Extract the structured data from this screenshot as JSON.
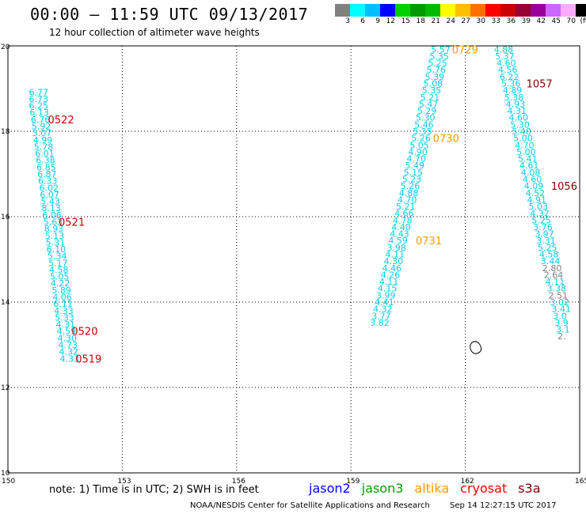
{
  "title": "00:00 – 11:59 UTC 09/13/2017",
  "subtitle": "12 hour collection of altimeter wave heights",
  "legend": {
    "colors": [
      "#808080",
      "#00ffff",
      "#00bfff",
      "#0000ff",
      "#00d000",
      "#009900",
      "#00bb00",
      "#ffff00",
      "#ffbf00",
      "#ff7000",
      "#ff0000",
      "#cc0000",
      "#990033",
      "#990099",
      "#cc66ff",
      "#ffaaff",
      "#000000"
    ],
    "ticks": [
      "3",
      "6",
      "9",
      "12",
      "15",
      "18",
      "21",
      "24",
      "27",
      "30",
      "33",
      "36",
      "39",
      "42",
      "45",
      "70",
      "(ft)"
    ]
  },
  "map": {
    "x_ticks": [
      "150",
      "153",
      "156",
      "159",
      "162",
      "165"
    ],
    "y_ticks": [
      "20",
      "18",
      "16",
      "14",
      "12",
      "10"
    ],
    "lon_range": [
      150,
      165
    ],
    "lat_range": [
      10,
      20
    ],
    "value_color": "#00cfe6",
    "low_value_color": "#808080",
    "tracks": [
      {
        "points": [
          {
            "lon": 150.55,
            "lat": 18.92,
            "v": "6.77"
          },
          {
            "lon": 150.55,
            "lat": 18.76,
            "v": "6.73"
          },
          {
            "lon": 150.55,
            "lat": 18.6,
            "v": "6.25"
          },
          {
            "lon": 150.57,
            "lat": 18.44,
            "v": "6.13"
          },
          {
            "lon": 150.6,
            "lat": 18.28,
            "v": "6.76"
          },
          {
            "lon": 150.62,
            "lat": 18.12,
            "v": "5.92"
          },
          {
            "lon": 150.64,
            "lat": 17.96,
            "v": "5.07"
          },
          {
            "lon": 150.66,
            "lat": 17.8,
            "v": "4.99"
          },
          {
            "lon": 150.68,
            "lat": 17.64,
            "v": "5.78"
          },
          {
            "lon": 150.71,
            "lat": 17.48,
            "v": "6.01"
          },
          {
            "lon": 150.73,
            "lat": 17.32,
            "v": "6.38"
          },
          {
            "lon": 150.75,
            "lat": 17.16,
            "v": "6.85"
          },
          {
            "lon": 150.77,
            "lat": 17.0,
            "v": "6.87"
          },
          {
            "lon": 150.79,
            "lat": 16.84,
            "v": "6.33"
          },
          {
            "lon": 150.82,
            "lat": 16.68,
            "v": "6.02"
          },
          {
            "lon": 150.84,
            "lat": 16.52,
            "v": "6.07"
          },
          {
            "lon": 150.86,
            "lat": 16.36,
            "v": "5.43"
          },
          {
            "lon": 150.88,
            "lat": 16.2,
            "v": "8.13"
          },
          {
            "lon": 150.9,
            "lat": 16.04,
            "v": "6.06"
          },
          {
            "lon": 150.93,
            "lat": 15.88,
            "v": "5.63"
          },
          {
            "lon": 150.95,
            "lat": 15.72,
            "v": "8.93"
          },
          {
            "lon": 150.97,
            "lat": 15.56,
            "v": "5.13"
          },
          {
            "lon": 150.99,
            "lat": 15.4,
            "v": "5.31"
          },
          {
            "lon": 151.01,
            "lat": 15.24,
            "v": "6.10"
          },
          {
            "lon": 151.04,
            "lat": 15.08,
            "v": "5.34"
          },
          {
            "lon": 151.06,
            "lat": 14.92,
            "v": "5.17"
          },
          {
            "lon": 151.08,
            "lat": 14.76,
            "v": "4.58"
          },
          {
            "lon": 151.1,
            "lat": 14.6,
            "v": "5.05"
          },
          {
            "lon": 151.12,
            "lat": 14.44,
            "v": "4.22"
          },
          {
            "lon": 151.15,
            "lat": 14.28,
            "v": "5.89"
          },
          {
            "lon": 151.17,
            "lat": 14.12,
            "v": "4.06"
          },
          {
            "lon": 151.19,
            "lat": 13.96,
            "v": "6.11"
          },
          {
            "lon": 151.21,
            "lat": 13.8,
            "v": "4.33"
          },
          {
            "lon": 151.23,
            "lat": 13.64,
            "v": "5.33"
          },
          {
            "lon": 151.26,
            "lat": 13.48,
            "v": "4.31"
          },
          {
            "lon": 151.28,
            "lat": 13.32,
            "v": "4.59"
          },
          {
            "lon": 151.3,
            "lat": 13.16,
            "v": "4.30"
          },
          {
            "lon": 151.32,
            "lat": 13.0,
            "v": "4.73"
          },
          {
            "lon": 151.34,
            "lat": 12.84,
            "v": "4.32"
          },
          {
            "lon": 151.36,
            "lat": 12.68,
            "v": "4.33"
          }
        ],
        "labels": [
          {
            "lon": 151.05,
            "lat": 18.28,
            "t": "0522",
            "color": "#cc0000"
          },
          {
            "lon": 151.33,
            "lat": 15.88,
            "t": "0521",
            "color": "#cc0000"
          },
          {
            "lon": 151.67,
            "lat": 13.32,
            "t": "0520",
            "color": "#cc0000"
          },
          {
            "lon": 151.77,
            "lat": 12.68,
            "t": "0519",
            "color": "#cc0000"
          }
        ]
      },
      {
        "points": [
          {
            "lon": 161.1,
            "lat": 19.92,
            "v": "5.57"
          },
          {
            "lon": 161.06,
            "lat": 19.76,
            "v": "5.35"
          },
          {
            "lon": 161.02,
            "lat": 19.6,
            "v": "5.25"
          },
          {
            "lon": 160.98,
            "lat": 19.44,
            "v": "5.76"
          },
          {
            "lon": 160.94,
            "lat": 19.28,
            "v": "5.39"
          },
          {
            "lon": 160.9,
            "lat": 19.12,
            "v": "5.08"
          },
          {
            "lon": 160.86,
            "lat": 18.96,
            "v": "5.35"
          },
          {
            "lon": 160.82,
            "lat": 18.8,
            "v": "5.21"
          },
          {
            "lon": 160.78,
            "lat": 18.64,
            "v": "5.47"
          },
          {
            "lon": 160.74,
            "lat": 18.48,
            "v": "5.29"
          },
          {
            "lon": 160.7,
            "lat": 18.32,
            "v": "5.30"
          },
          {
            "lon": 160.66,
            "lat": 18.16,
            "v": "5.46"
          },
          {
            "lon": 160.62,
            "lat": 18.0,
            "v": "5.35"
          },
          {
            "lon": 160.58,
            "lat": 17.84,
            "v": "5.26"
          },
          {
            "lon": 160.54,
            "lat": 17.68,
            "v": "5.05"
          },
          {
            "lon": 160.5,
            "lat": 17.52,
            "v": "4.90"
          },
          {
            "lon": 160.46,
            "lat": 17.36,
            "v": "4.70"
          },
          {
            "lon": 160.42,
            "lat": 17.2,
            "v": "5.49"
          },
          {
            "lon": 160.38,
            "lat": 17.04,
            "v": "5.15"
          },
          {
            "lon": 160.34,
            "lat": 16.88,
            "v": "5.23"
          },
          {
            "lon": 160.3,
            "lat": 16.72,
            "v": "5.26"
          },
          {
            "lon": 160.26,
            "lat": 16.56,
            "v": "4.88"
          },
          {
            "lon": 160.22,
            "lat": 16.4,
            "v": "4.70"
          },
          {
            "lon": 160.18,
            "lat": 16.24,
            "v": "5.21"
          },
          {
            "lon": 160.14,
            "lat": 16.08,
            "v": "4.66"
          },
          {
            "lon": 160.1,
            "lat": 15.92,
            "v": "4.78"
          },
          {
            "lon": 160.06,
            "lat": 15.76,
            "v": "4.40"
          },
          {
            "lon": 160.02,
            "lat": 15.6,
            "v": "4.43"
          },
          {
            "lon": 159.98,
            "lat": 15.44,
            "v": "4.59"
          },
          {
            "lon": 159.94,
            "lat": 15.28,
            "v": "3.98"
          },
          {
            "lon": 159.9,
            "lat": 15.12,
            "v": "4.11"
          },
          {
            "lon": 159.86,
            "lat": 14.96,
            "v": "4.30"
          },
          {
            "lon": 159.82,
            "lat": 14.8,
            "v": "4.46"
          },
          {
            "lon": 159.78,
            "lat": 14.64,
            "v": "4.26"
          },
          {
            "lon": 159.74,
            "lat": 14.48,
            "v": "4.11"
          },
          {
            "lon": 159.7,
            "lat": 14.32,
            "v": "4.15"
          },
          {
            "lon": 159.66,
            "lat": 14.16,
            "v": "3.99"
          },
          {
            "lon": 159.62,
            "lat": 14.0,
            "v": "4.41"
          },
          {
            "lon": 159.58,
            "lat": 13.84,
            "v": "4.32"
          },
          {
            "lon": 159.54,
            "lat": 13.68,
            "v": "3.77"
          },
          {
            "lon": 159.5,
            "lat": 13.52,
            "v": "3.82"
          }
        ],
        "labels": [
          {
            "lon": 161.65,
            "lat": 19.92,
            "t": "0729",
            "color": "#ff9900"
          },
          {
            "lon": 161.15,
            "lat": 17.84,
            "t": "0730",
            "color": "#ff9900"
          },
          {
            "lon": 160.7,
            "lat": 15.44,
            "t": "0731",
            "color": "#ff9900"
          }
        ]
      },
      {
        "points": [
          {
            "lon": 162.75,
            "lat": 19.92,
            "v": "4.88"
          },
          {
            "lon": 162.78,
            "lat": 19.76,
            "v": "5.37"
          },
          {
            "lon": 162.82,
            "lat": 19.6,
            "v": "4.60"
          },
          {
            "lon": 162.86,
            "lat": 19.44,
            "v": "4.56"
          },
          {
            "lon": 162.9,
            "lat": 19.28,
            "v": "6.22"
          },
          {
            "lon": 162.94,
            "lat": 19.12,
            "v": "5.36"
          },
          {
            "lon": 162.98,
            "lat": 18.96,
            "v": "4.89"
          },
          {
            "lon": 163.02,
            "lat": 18.8,
            "v": "5.38"
          },
          {
            "lon": 163.06,
            "lat": 18.64,
            "v": "4.93"
          },
          {
            "lon": 163.1,
            "lat": 18.48,
            "v": "4.31"
          },
          {
            "lon": 163.14,
            "lat": 18.32,
            "v": "4.60"
          },
          {
            "lon": 163.18,
            "lat": 18.16,
            "v": "5.30"
          },
          {
            "lon": 163.22,
            "lat": 18.0,
            "v": "5.40"
          },
          {
            "lon": 163.26,
            "lat": 17.84,
            "v": "5.00"
          },
          {
            "lon": 163.3,
            "lat": 17.68,
            "v": "4.70"
          },
          {
            "lon": 163.34,
            "lat": 17.52,
            "v": "5.00"
          },
          {
            "lon": 163.38,
            "lat": 17.36,
            "v": "5.41"
          },
          {
            "lon": 163.42,
            "lat": 17.2,
            "v": "4.61"
          },
          {
            "lon": 163.46,
            "lat": 17.04,
            "v": "4.08"
          },
          {
            "lon": 163.5,
            "lat": 16.88,
            "v": "4.60"
          },
          {
            "lon": 163.54,
            "lat": 16.72,
            "v": "4.09"
          },
          {
            "lon": 163.58,
            "lat": 16.56,
            "v": "4.52"
          },
          {
            "lon": 163.62,
            "lat": 16.4,
            "v": "4.91"
          },
          {
            "lon": 163.66,
            "lat": 16.24,
            "v": "5.03"
          },
          {
            "lon": 163.7,
            "lat": 16.08,
            "v": "4.32"
          },
          {
            "lon": 163.74,
            "lat": 15.92,
            "v": "5.25"
          },
          {
            "lon": 163.78,
            "lat": 15.76,
            "v": "3.76"
          },
          {
            "lon": 163.82,
            "lat": 15.6,
            "v": "3.97"
          },
          {
            "lon": 163.86,
            "lat": 15.44,
            "v": "3.31"
          },
          {
            "lon": 163.9,
            "lat": 15.28,
            "v": "5.25"
          },
          {
            "lon": 163.94,
            "lat": 15.12,
            "v": "4.58"
          },
          {
            "lon": 163.98,
            "lat": 14.96,
            "v": "3.44"
          },
          {
            "lon": 164.02,
            "lat": 14.8,
            "v": "2.80"
          },
          {
            "lon": 164.06,
            "lat": 14.64,
            "v": "2.64"
          },
          {
            "lon": 164.1,
            "lat": 14.48,
            "v": "4.11"
          },
          {
            "lon": 164.14,
            "lat": 14.32,
            "v": "3.38"
          },
          {
            "lon": 164.18,
            "lat": 14.16,
            "v": "2.51"
          },
          {
            "lon": 164.22,
            "lat": 14.0,
            "v": "3.02"
          },
          {
            "lon": 164.26,
            "lat": 13.84,
            "v": "3.41"
          },
          {
            "lon": 164.3,
            "lat": 13.68,
            "v": "3.0"
          },
          {
            "lon": 164.34,
            "lat": 13.52,
            "v": "3.9"
          },
          {
            "lon": 164.38,
            "lat": 13.36,
            "v": "3.1"
          },
          {
            "lon": 164.42,
            "lat": 13.2,
            "v": "2."
          }
        ],
        "labels": [
          {
            "lon": 163.6,
            "lat": 19.12,
            "t": "1057",
            "color": "#800000"
          },
          {
            "lon": 164.25,
            "lat": 16.72,
            "t": "1056",
            "color": "#800000"
          }
        ]
      }
    ],
    "island": {
      "lon": 162.25,
      "lat": 12.9
    }
  },
  "footer": {
    "note": "note: 1) Time is in UTC; 2) SWH is in feet",
    "satellites": [
      {
        "name": "jason2",
        "color": "#0000ff"
      },
      {
        "name": "jason3",
        "color": "#00a000"
      },
      {
        "name": "altika",
        "color": "#ff9900"
      },
      {
        "name": "cryosat",
        "color": "#ff0000"
      },
      {
        "name": "s3a",
        "color": "#800000"
      }
    ],
    "credit": "NOAA/NESDIS Center for Satellite Applications and Research",
    "timestamp": "Sep 14 12:27:15 UTC 2017"
  }
}
